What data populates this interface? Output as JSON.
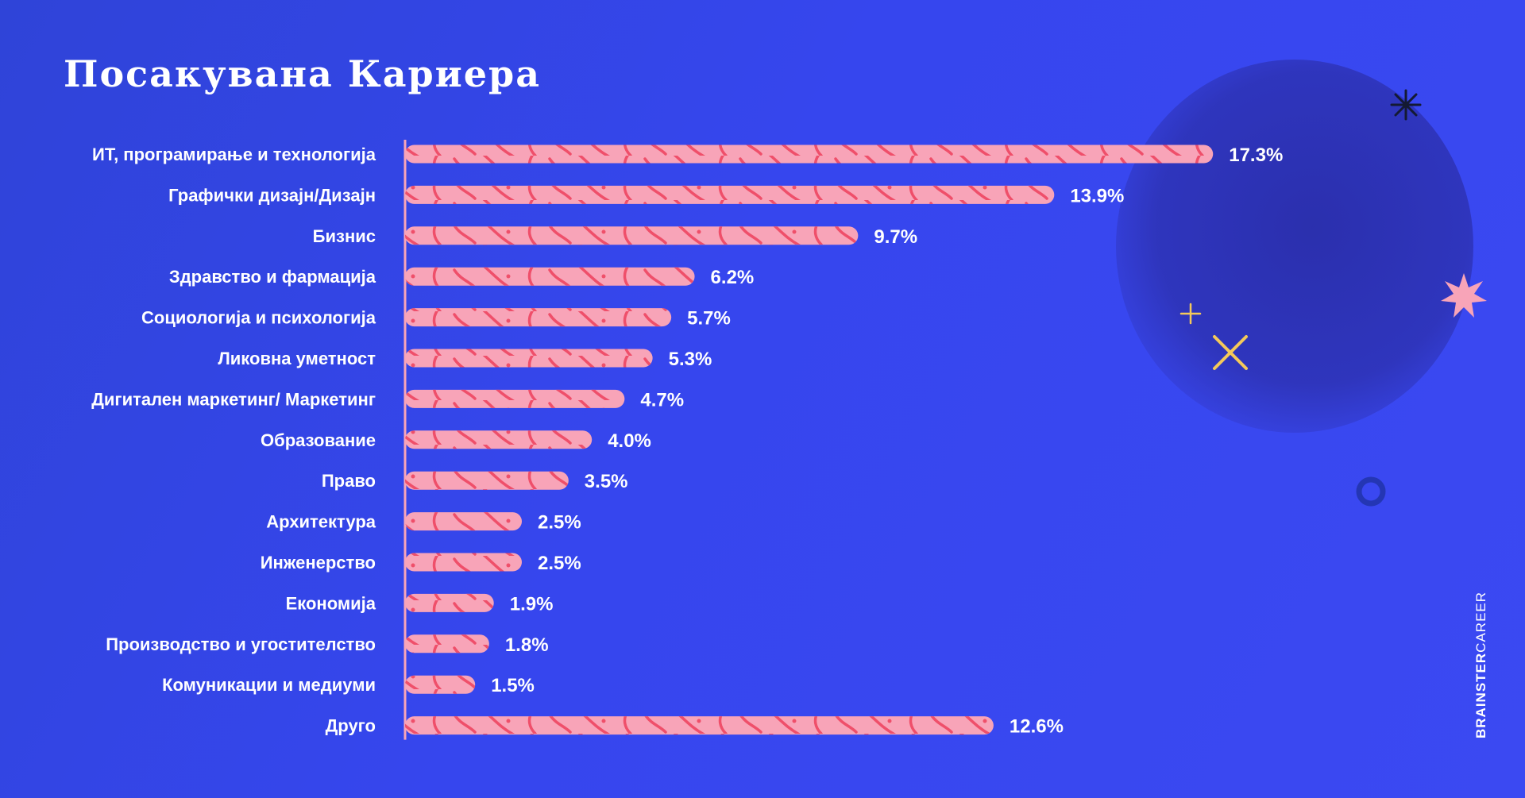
{
  "title": "Посакувана Кариера",
  "brand": {
    "bold": "BRAINSTER",
    "light": "CAREER"
  },
  "colors": {
    "background": "#3646ee",
    "bar": "#f8a4b8",
    "bar_pattern": "#ef4f6a",
    "text": "#ffffff",
    "accent_yellow": "#f4c95a",
    "accent_pink": "#f8a4b8"
  },
  "decorations": [
    "star-burst-icon",
    "pink-star-icon",
    "plus-icon",
    "x-mark-icon",
    "ring-icon"
  ],
  "chart_data": {
    "type": "bar",
    "orientation": "horizontal",
    "title": "Посакувана Кариера",
    "categories": [
      "ИТ, програмирање и технологија",
      "Графички дизајн/Дизајн",
      "Бизнис",
      "Здравство и фармација",
      "Социологија и психологија",
      "Ликовна уметност",
      "Дигитален маркетинг/ Маркетинг",
      "Образование",
      "Право",
      "Архитектура",
      "Инженерство",
      "Економија",
      "Производство и угостителство",
      "Комуникации и медиуми",
      "Друго"
    ],
    "values": [
      17.3,
      13.9,
      9.7,
      6.2,
      5.7,
      5.3,
      4.7,
      4.0,
      3.5,
      2.5,
      2.5,
      1.9,
      1.8,
      1.5,
      12.6
    ],
    "labels": [
      "17.3%",
      "13.9%",
      "9.7%",
      "6.2%",
      "5.7%",
      "5.3%",
      "4.7%",
      "4.0%",
      "3.5%",
      "2.5%",
      "2.5%",
      "1.9%",
      "1.8%",
      "1.5%",
      "12.6%"
    ],
    "xlabel": "",
    "ylabel": "",
    "grid": false,
    "legend": "none"
  }
}
